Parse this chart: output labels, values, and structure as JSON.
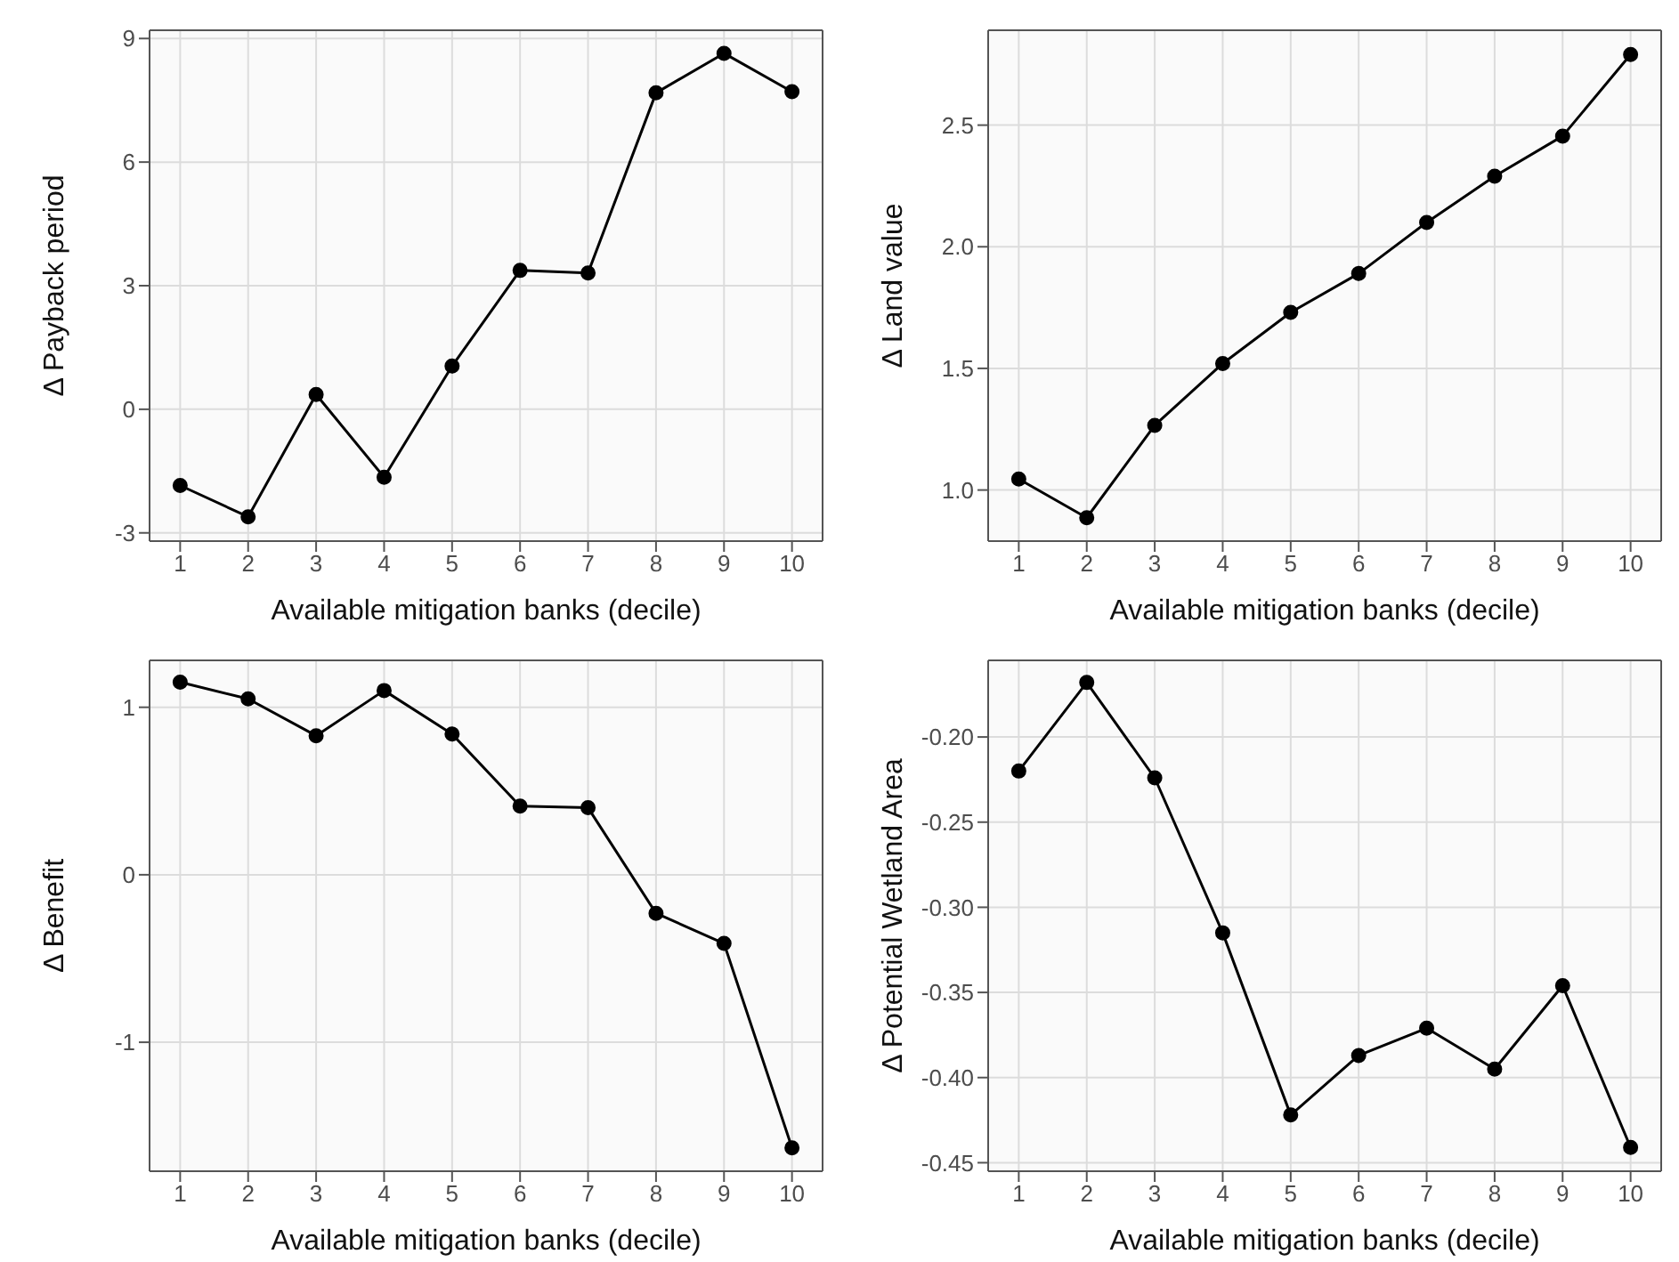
{
  "chart_data": [
    {
      "type": "line",
      "x": [
        1,
        2,
        3,
        4,
        5,
        6,
        7,
        8,
        9,
        10
      ],
      "xlim": [
        0.55,
        10.45
      ],
      "xticks": [
        1,
        2,
        3,
        4,
        5,
        6,
        7,
        8,
        9,
        10
      ],
      "xlabel": "Available mitigation banks (decile)",
      "ylabel": "Δ Payback period",
      "ylim": [
        -3.2,
        9.2
      ],
      "yticks": [
        -3,
        0,
        3,
        6,
        9
      ],
      "grid": true,
      "marker": "circle",
      "series": [
        {
          "color": "#000000",
          "values": [
            -1.85,
            -2.61,
            0.36,
            -1.65,
            1.05,
            3.37,
            3.31,
            7.68,
            8.64,
            7.71
          ]
        }
      ]
    },
    {
      "type": "line",
      "x": [
        1,
        2,
        3,
        4,
        5,
        6,
        7,
        8,
        9,
        10
      ],
      "xlim": [
        0.55,
        10.45
      ],
      "xticks": [
        1,
        2,
        3,
        4,
        5,
        6,
        7,
        8,
        9,
        10
      ],
      "xlabel": "Available mitigation banks (decile)",
      "ylabel": "Δ Land value",
      "ylim": [
        0.79,
        2.89
      ],
      "yticks": [
        {
          "value": 1,
          "label": "1.0"
        },
        1.5,
        {
          "value": 2,
          "label": "2.0"
        },
        2.5
      ],
      "grid": true,
      "marker": "circle",
      "series": [
        {
          "color": "#000000",
          "values": [
            1.045,
            0.886,
            1.266,
            1.52,
            1.73,
            1.89,
            2.1,
            2.29,
            2.455,
            2.79
          ]
        }
      ]
    },
    {
      "type": "line",
      "x": [
        1,
        2,
        3,
        4,
        5,
        6,
        7,
        8,
        9,
        10
      ],
      "xlim": [
        0.55,
        10.45
      ],
      "xticks": [
        1,
        2,
        3,
        4,
        5,
        6,
        7,
        8,
        9,
        10
      ],
      "xlabel": "Available mitigation banks (decile)",
      "ylabel": "Δ Benefit",
      "ylim": [
        -1.77,
        1.28
      ],
      "yticks": [
        -1,
        0,
        1
      ],
      "grid": true,
      "marker": "circle",
      "series": [
        {
          "color": "#000000",
          "values": [
            1.15,
            1.05,
            0.83,
            1.1,
            0.84,
            0.41,
            0.4,
            -0.23,
            -0.41,
            -1.63
          ]
        }
      ]
    },
    {
      "type": "line",
      "x": [
        1,
        2,
        3,
        4,
        5,
        6,
        7,
        8,
        9,
        10
      ],
      "xlim": [
        0.55,
        10.45
      ],
      "xticks": [
        1,
        2,
        3,
        4,
        5,
        6,
        7,
        8,
        9,
        10
      ],
      "xlabel": "Available mitigation banks (decile)",
      "ylabel": "Δ Potential Wetland Area",
      "ylim": [
        -0.455,
        -0.155
      ],
      "yticks": [
        {
          "value": -0.45,
          "label": "-0.45"
        },
        {
          "value": -0.4,
          "label": "-0.40"
        },
        {
          "value": -0.35,
          "label": "-0.35"
        },
        {
          "value": -0.3,
          "label": "-0.30"
        },
        {
          "value": -0.25,
          "label": "-0.25"
        },
        {
          "value": -0.2,
          "label": "-0.20"
        }
      ],
      "grid": true,
      "marker": "circle",
      "series": [
        {
          "color": "#000000",
          "values": [
            -0.22,
            -0.168,
            -0.224,
            -0.315,
            -0.422,
            -0.387,
            -0.371,
            -0.395,
            -0.346,
            -0.441
          ]
        }
      ]
    }
  ]
}
